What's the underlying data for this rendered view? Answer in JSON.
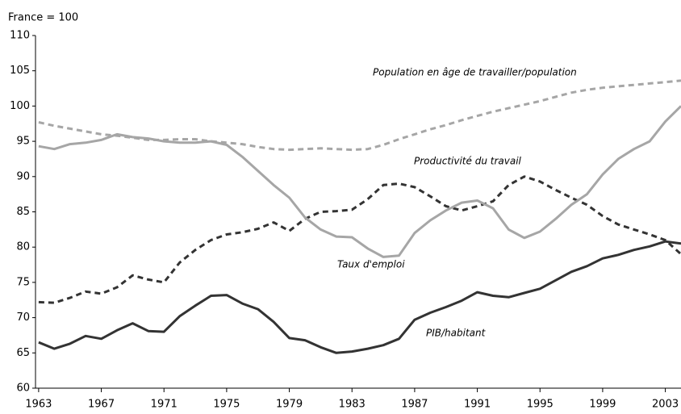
{
  "chart_data": {
    "type": "line",
    "y_label": "France = 100",
    "x": [
      1963,
      1964,
      1965,
      1966,
      1967,
      1968,
      1969,
      1970,
      1971,
      1972,
      1973,
      1974,
      1975,
      1976,
      1977,
      1978,
      1979,
      1980,
      1981,
      1982,
      1983,
      1984,
      1985,
      1986,
      1987,
      1988,
      1989,
      1990,
      1991,
      1992,
      1993,
      1994,
      1995,
      1996,
      1997,
      1998,
      1999,
      2000,
      2001,
      2002,
      2003,
      2004
    ],
    "series": [
      {
        "name": "Population en âge de travailler/population",
        "color": "#a6a6a6",
        "dash": true,
        "values": [
          97.7,
          97.2,
          96.8,
          96.4,
          96.0,
          95.8,
          95.5,
          95.2,
          95.2,
          95.3,
          95.3,
          95.0,
          94.8,
          94.6,
          94.2,
          93.9,
          93.8,
          93.9,
          94.0,
          93.9,
          93.8,
          93.9,
          94.5,
          95.3,
          96.0,
          96.7,
          97.3,
          98.0,
          98.6,
          99.2,
          99.7,
          100.2,
          100.7,
          101.3,
          101.9,
          102.3,
          102.6,
          102.8,
          103.0,
          103.2,
          103.4,
          103.6
        ]
      },
      {
        "name": "Productivité du travail",
        "color": "#333333",
        "dash": true,
        "values": [
          72.2,
          72.1,
          72.8,
          73.7,
          73.4,
          74.3,
          76.0,
          75.4,
          75.0,
          77.8,
          79.6,
          81.0,
          81.8,
          82.1,
          82.6,
          83.5,
          82.3,
          84.0,
          85.0,
          85.1,
          85.3,
          86.8,
          88.8,
          89.0,
          88.5,
          87.2,
          85.8,
          85.2,
          85.8,
          86.5,
          88.8,
          90.0,
          89.3,
          88.1,
          87.0,
          86.0,
          84.4,
          83.2,
          82.5,
          81.8,
          81.0,
          79.0
        ]
      },
      {
        "name": "Taux d'emploi",
        "color": "#a6a6a6",
        "dash": false,
        "values": [
          94.3,
          93.9,
          94.6,
          94.8,
          95.2,
          96.0,
          95.6,
          95.4,
          95.0,
          94.8,
          94.8,
          95.0,
          94.5,
          92.8,
          90.8,
          88.8,
          87.0,
          84.2,
          82.5,
          81.5,
          81.4,
          79.8,
          78.6,
          78.8,
          82.0,
          83.8,
          85.2,
          86.3,
          86.6,
          85.5,
          82.5,
          81.3,
          82.2,
          84.0,
          86.0,
          87.5,
          90.3,
          92.5,
          93.9,
          95.0,
          97.8,
          100.0
        ]
      },
      {
        "name": "PIB/habitant",
        "color": "#333333",
        "dash": false,
        "values": [
          66.5,
          65.6,
          66.3,
          67.4,
          67.0,
          68.2,
          69.2,
          68.1,
          68.0,
          70.2,
          71.7,
          73.1,
          73.2,
          72.0,
          71.2,
          69.4,
          67.1,
          66.8,
          65.8,
          65.0,
          65.2,
          65.6,
          66.1,
          67.0,
          69.7,
          70.7,
          71.5,
          72.4,
          73.6,
          73.1,
          72.9,
          73.5,
          74.1,
          75.3,
          76.5,
          77.3,
          78.4,
          78.9,
          79.6,
          80.1,
          80.8,
          80.5
        ]
      }
    ],
    "xlim": [
      1962.8,
      2004
    ],
    "xticks": [
      1963,
      1967,
      1971,
      1975,
      1979,
      1983,
      1987,
      1991,
      1995,
      1999,
      2003
    ],
    "ylim": [
      60,
      110
    ],
    "yticks": [
      60,
      65,
      70,
      75,
      80,
      85,
      90,
      95,
      100,
      105,
      110
    ],
    "grid": false
  }
}
